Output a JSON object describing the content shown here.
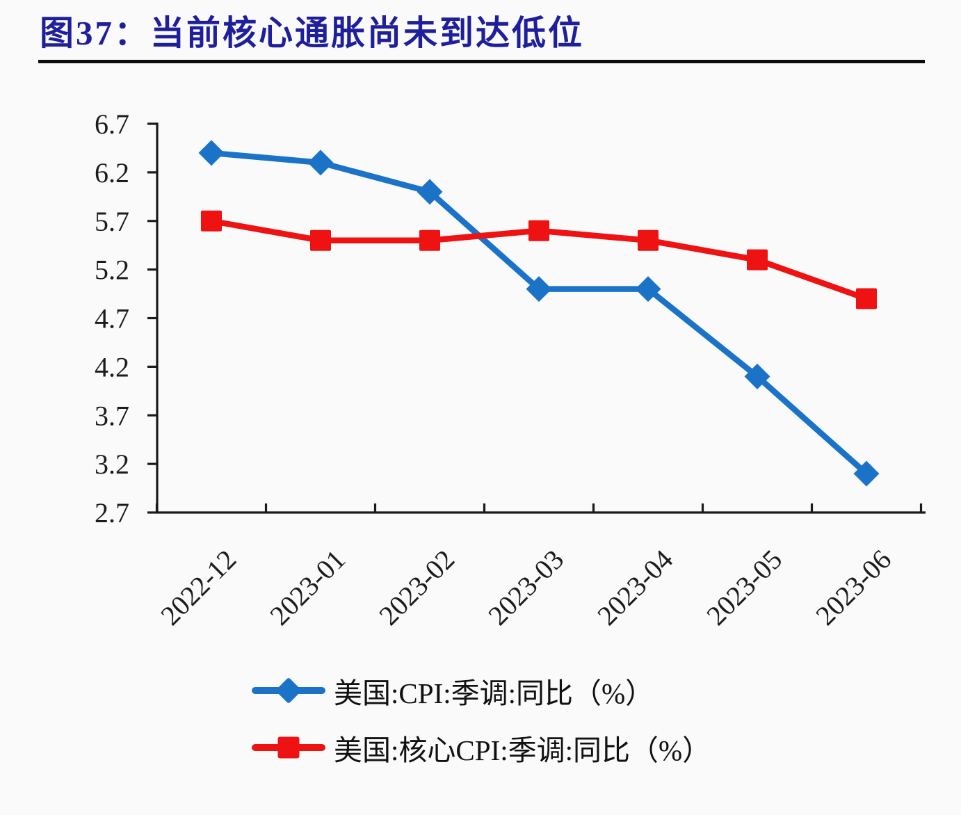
{
  "figure": {
    "title": "图37：当前核心通胀尚未到达低位"
  },
  "chart_data": {
    "type": "line",
    "title": "图37：当前核心通胀尚未到达低位",
    "categories": [
      "2022-12",
      "2023-01",
      "2023-02",
      "2023-03",
      "2023-04",
      "2023-05",
      "2023-06"
    ],
    "series": [
      {
        "name": "美国:CPI:季调:同比（%）",
        "marker": "diamond",
        "color": "#1b73c8",
        "values": [
          6.4,
          6.3,
          6.0,
          5.0,
          5.0,
          4.1,
          3.1
        ]
      },
      {
        "name": "美国:核心CPI:季调:同比（%）",
        "marker": "square",
        "color": "#ee1212",
        "values": [
          5.7,
          5.5,
          5.5,
          5.6,
          5.5,
          5.3,
          4.9
        ]
      }
    ],
    "ylim": [
      2.7,
      6.7
    ],
    "yticks": [
      6.7,
      6.2,
      5.7,
      5.2,
      4.7,
      4.2,
      3.7,
      3.2,
      2.7
    ],
    "grid": false,
    "legend_position": "bottom-left",
    "xlabel": "",
    "ylabel": ""
  },
  "colors": {
    "title": "#1f1f9c",
    "axis": "#1a1a1a",
    "tick_label": "#1c1c1c",
    "background": "#fafafb",
    "series_cpi_blue": "#1b73c8",
    "series_core_cpi_red": "#ee1212"
  }
}
